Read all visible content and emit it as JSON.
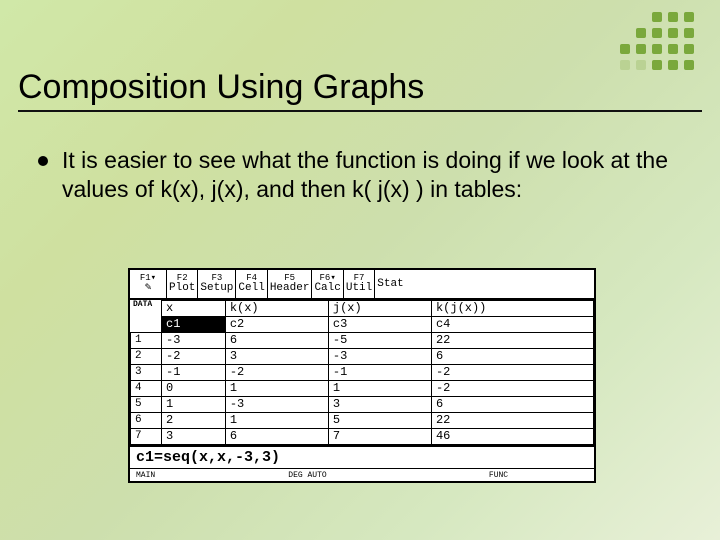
{
  "slide": {
    "title": "Composition Using Graphs",
    "bullet_text": "It is easier to see what the function is doing if we look at the values of k(x), j(x), and then k( j(x) ) in tables:",
    "title_fontsize": 34,
    "body_fontsize": 23,
    "bg_gradient": [
      "#d0e8a8",
      "#e8f0d8"
    ],
    "rule_color": "#111111"
  },
  "deco": {
    "dot_color": "#7aa83c",
    "faded_color": "rgba(122,168,60,0.25)",
    "grid": [
      [
        0,
        0,
        1,
        1,
        1
      ],
      [
        0,
        1,
        1,
        1,
        1
      ],
      [
        1,
        1,
        1,
        1,
        1
      ],
      [
        2,
        2,
        1,
        1,
        1
      ]
    ]
  },
  "calc": {
    "menu": [
      {
        "fkey": "F1",
        "label": "▾ 🖊"
      },
      {
        "fkey": "F2",
        "label": "Plot"
      },
      {
        "fkey": "F3",
        "label": "Setup"
      },
      {
        "fkey": "F4",
        "label": "Cell"
      },
      {
        "fkey": "F5",
        "label": "Header"
      },
      {
        "fkey": "F6▾",
        "label": "Calc"
      },
      {
        "fkey": "F7",
        "label": "Util"
      },
      {
        "fkey": "",
        "label": "Stat"
      }
    ],
    "data_tag": "DATA",
    "headers": [
      "x",
      "k(x)",
      "j(x)",
      "k(j(x))"
    ],
    "col_names": [
      "c1",
      "c2",
      "c3",
      "c4"
    ],
    "selected_col": 0,
    "row_index": [
      "1",
      "2",
      "3",
      "4",
      "5",
      "6",
      "7"
    ],
    "rows": [
      [
        "-3",
        "6",
        "-5",
        "22"
      ],
      [
        "-2",
        "3",
        "-3",
        "6"
      ],
      [
        "-1",
        "-2",
        "-1",
        "-2"
      ],
      [
        "0",
        "1",
        "1",
        "-2"
      ],
      [
        "1",
        "-3",
        "3",
        "6"
      ],
      [
        "2",
        "1",
        "5",
        "22"
      ],
      [
        "3",
        "6",
        "7",
        "46"
      ]
    ],
    "formula": "c1=seq(x,x,-3,3)",
    "status": {
      "left": "MAIN",
      "center": "DEG AUTO",
      "right": "FUNC"
    },
    "border_color": "#000000",
    "bg_color": "#ffffff",
    "font": "Courier New"
  }
}
